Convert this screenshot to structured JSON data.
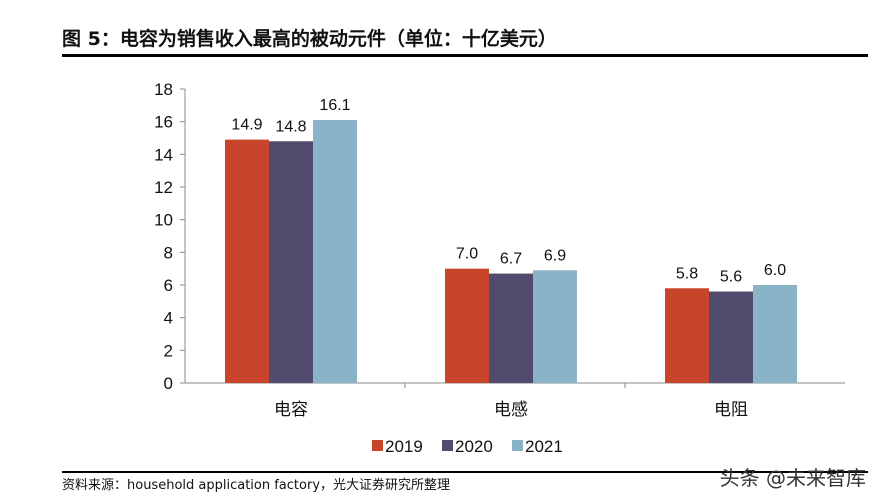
{
  "title": "图 5：电容为销售收入最高的被动元件（单位：十亿美元）",
  "source": "资料来源：household application factory，光大证券研究所整理",
  "watermark": "头条 @未来智库",
  "chart_data": {
    "type": "bar",
    "categories": [
      "电容",
      "电感",
      "电阻"
    ],
    "series": [
      {
        "name": "2019",
        "values": [
          14.9,
          7.0,
          5.8
        ],
        "color": "#C8442A"
      },
      {
        "name": "2020",
        "values": [
          14.8,
          6.7,
          5.6
        ],
        "color": "#524B6E"
      },
      {
        "name": "2021",
        "values": [
          16.1,
          6.9,
          6.0
        ],
        "color": "#8BB3C8"
      }
    ],
    "yticks": [
      0,
      2,
      4,
      6,
      8,
      10,
      12,
      14,
      16,
      18
    ],
    "ylim": [
      0,
      18
    ],
    "grid": false,
    "legend": "bottom",
    "data_labels": true
  }
}
